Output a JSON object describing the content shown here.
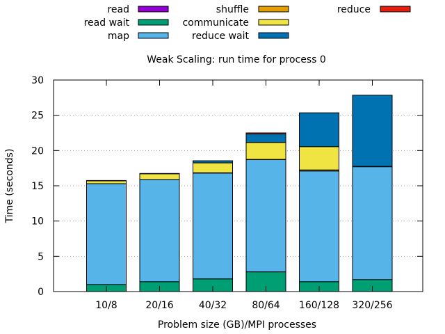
{
  "chart_data": {
    "type": "bar",
    "stacked": true,
    "title": "Weak Scaling: run time for process 0",
    "xlabel": "Problem size (GB)/MPI processes",
    "ylabel": "Time (seconds)",
    "ylim": [
      0,
      30
    ],
    "yticks": [
      0,
      5,
      10,
      15,
      20,
      25,
      30
    ],
    "grid": "horizontal dotted",
    "legend_position": "top",
    "categories": [
      "10/8",
      "20/16",
      "40/32",
      "80/64",
      "160/128",
      "320/256"
    ],
    "series": [
      {
        "name": "read wait",
        "color": "#009e73",
        "values": [
          1.0,
          1.4,
          1.8,
          2.8,
          1.4,
          1.7
        ]
      },
      {
        "name": "read",
        "color": "#9400d3",
        "values": [
          0.0,
          0.0,
          0.0,
          0.0,
          0.0,
          0.0
        ]
      },
      {
        "name": "map",
        "color": "#56b4e9",
        "values": [
          14.3,
          14.5,
          15.0,
          15.9,
          15.7,
          16.0
        ]
      },
      {
        "name": "shuffle",
        "color": "#e69f00",
        "values": [
          0.0,
          0.0,
          0.05,
          0.05,
          0.15,
          0.05
        ]
      },
      {
        "name": "communicate",
        "color": "#f0e442",
        "values": [
          0.4,
          0.8,
          1.4,
          2.4,
          3.3,
          0.0
        ]
      },
      {
        "name": "reduce wait",
        "color": "#0072b2",
        "values": [
          0.05,
          0.05,
          0.3,
          1.2,
          4.8,
          10.1
        ]
      },
      {
        "name": "reduce",
        "color": "#e51e10",
        "values": [
          0.0,
          0.0,
          0.0,
          0.15,
          0.0,
          0.0
        ]
      }
    ],
    "legend": [
      {
        "name": "read",
        "color": "#9400d3"
      },
      {
        "name": "read wait",
        "color": "#009e73"
      },
      {
        "name": "map",
        "color": "#56b4e9"
      },
      {
        "name": "shuffle",
        "color": "#e69f00"
      },
      {
        "name": "communicate",
        "color": "#f0e442"
      },
      {
        "name": "reduce wait",
        "color": "#0072b2"
      },
      {
        "name": "reduce",
        "color": "#e51e10"
      }
    ]
  }
}
